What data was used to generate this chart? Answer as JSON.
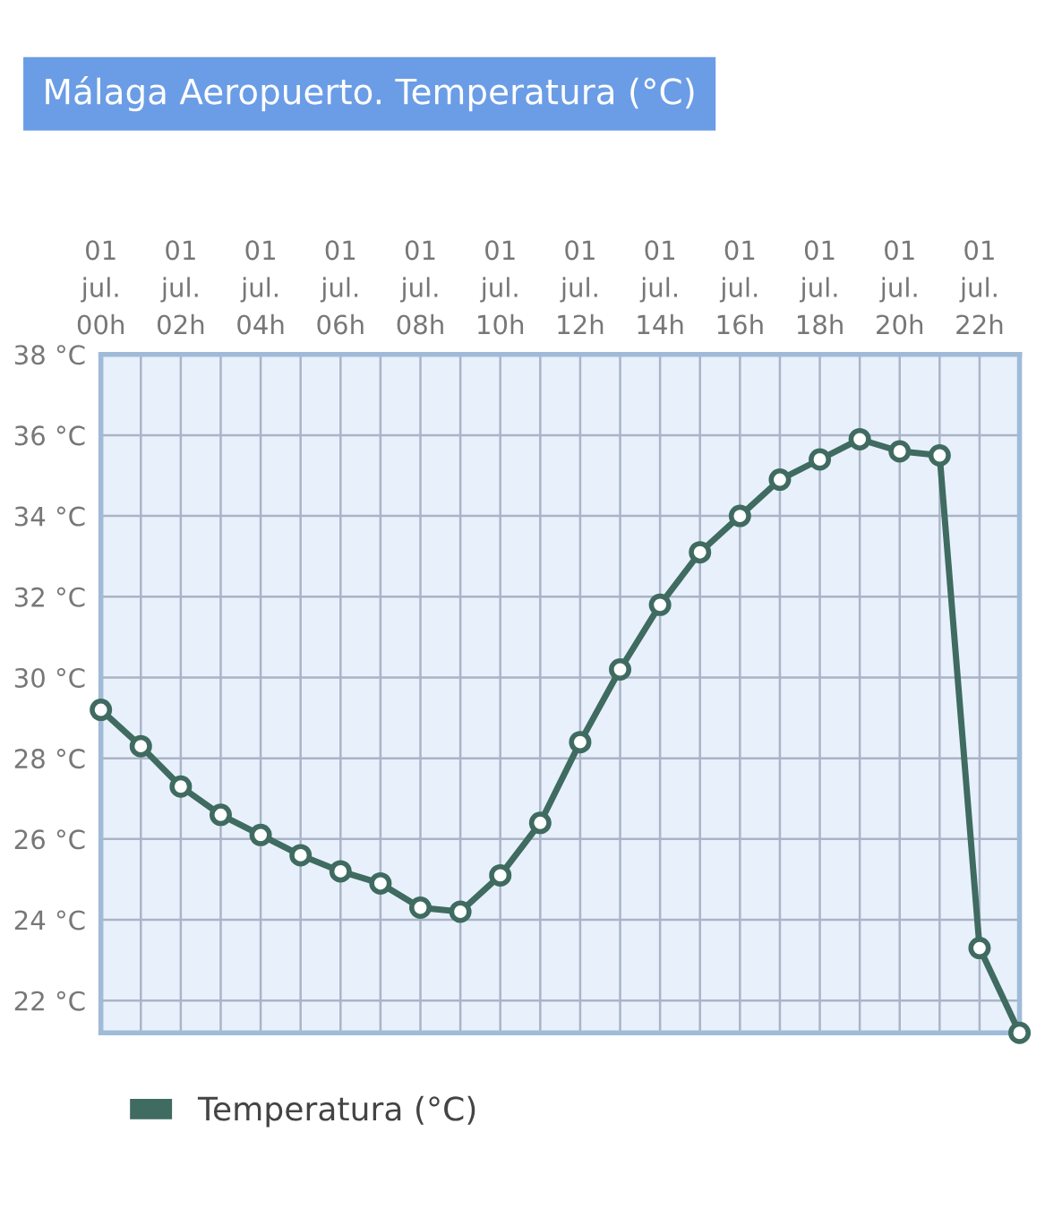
{
  "chart_data": {
    "type": "line",
    "title": "Málaga Aeropuerto. Temperatura (°C)",
    "categories": [
      "01\njul.\n00h",
      null,
      "01\njul.\n02h",
      null,
      "01\njul.\n04h",
      null,
      "01\njul.\n06h",
      null,
      "01\njul.\n08h",
      null,
      "01\njul.\n10h",
      null,
      "01\njul.\n12h",
      null,
      "01\njul.\n14h",
      null,
      "01\njul.\n16h",
      null,
      "01\njul.\n18h",
      null,
      "01\njul.\n20h",
      null,
      "01\njul.\n22h",
      null
    ],
    "series": [
      {
        "name": "Temperatura (°C)",
        "color": "#3f6b60",
        "values": [
          29.2,
          28.3,
          27.3,
          26.6,
          26.1,
          25.6,
          25.2,
          24.9,
          24.3,
          24.2,
          25.1,
          26.4,
          28.4,
          30.2,
          31.8,
          33.1,
          34.0,
          34.9,
          35.4,
          35.9,
          35.6,
          35.5,
          23.3,
          21.2
        ]
      }
    ],
    "ylim": [
      21.2,
      38
    ],
    "yticks": [
      {
        "value": 22,
        "label": "22 °C"
      },
      {
        "value": 24,
        "label": "24 °C"
      },
      {
        "value": 26,
        "label": "26 °C"
      },
      {
        "value": 28,
        "label": "28 °C"
      },
      {
        "value": 30,
        "label": "30 °C"
      },
      {
        "value": 32,
        "label": "32 °C"
      },
      {
        "value": 34,
        "label": "34 °C"
      },
      {
        "value": 36,
        "label": "36 °C"
      },
      {
        "value": 38,
        "label": "38 °C"
      }
    ],
    "grid": true,
    "legend": "bottom left",
    "marker": "circle",
    "line_style": "solid"
  }
}
